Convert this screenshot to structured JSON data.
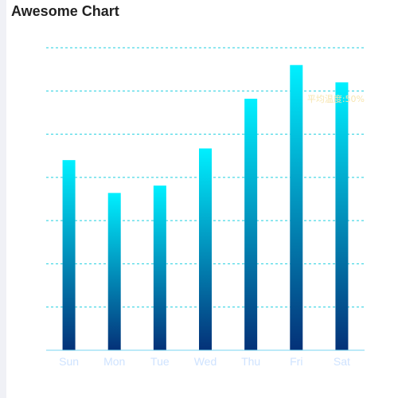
{
  "page": {
    "title": "Awesome Chart"
  },
  "chart_data": {
    "type": "bar",
    "categories": [
      "Sun",
      "Mon",
      "Tue",
      "Wed",
      "Thu",
      "Fri",
      "Sat"
    ],
    "values": [
      440,
      364,
      381,
      467,
      582,
      660,
      620
    ],
    "ylim": [
      0,
      700
    ],
    "grid": true,
    "grid_style": "dashed",
    "mark_line": {
      "label": "平均温度:50%"
    },
    "colors": {
      "bar_top": "#00f0ff",
      "bar_bottom": "#043178",
      "grid": "#1fcfe0",
      "axis": "#7ad6f0",
      "tick_label": "#cfe3ff",
      "mark_label": "#f7e6b0"
    }
  }
}
